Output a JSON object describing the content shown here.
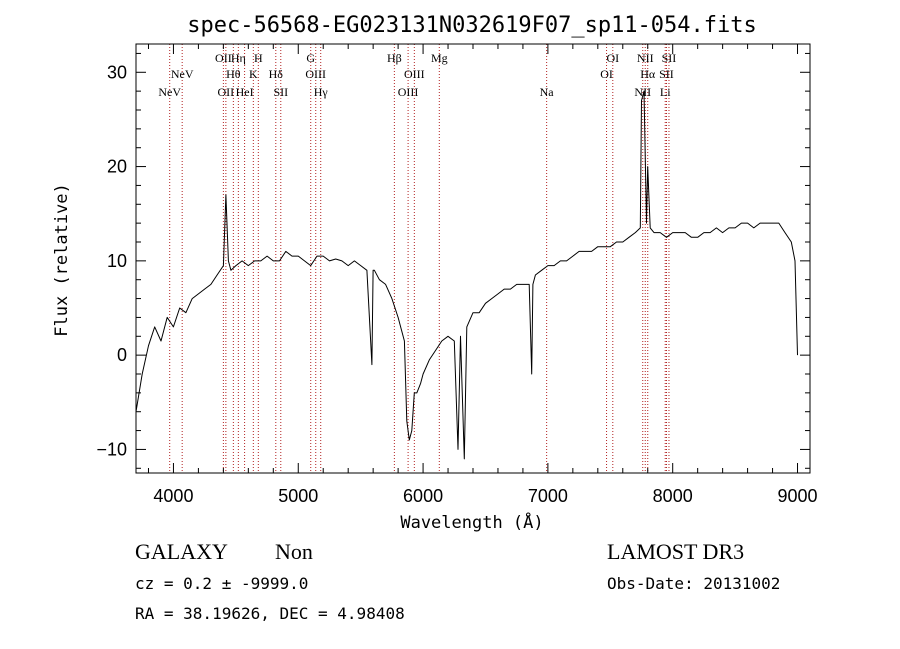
{
  "chart_data": {
    "type": "line",
    "title": "spec-56568-EG023131N032619F07_sp11-054.fits",
    "xlabel": "Wavelength (Å)",
    "ylabel": "Flux (relative)",
    "xlim": [
      3700,
      9100
    ],
    "ylim": [
      -12.5,
      33
    ],
    "xticks": [
      4000,
      5000,
      6000,
      7000,
      8000,
      9000
    ],
    "yticks": [
      -10,
      0,
      10,
      20,
      30
    ],
    "series": [
      {
        "name": "flux",
        "x": [
          3700,
          3750,
          3800,
          3850,
          3900,
          3950,
          4000,
          4050,
          4100,
          4150,
          4200,
          4250,
          4300,
          4350,
          4400,
          4420,
          4440,
          4460,
          4500,
          4550,
          4600,
          4650,
          4700,
          4750,
          4800,
          4850,
          4900,
          4950,
          5000,
          5050,
          5100,
          5150,
          5200,
          5250,
          5300,
          5350,
          5400,
          5450,
          5500,
          5550,
          5590,
          5600,
          5610,
          5650,
          5700,
          5750,
          5800,
          5850,
          5870,
          5890,
          5910,
          5930,
          5950,
          5980,
          6000,
          6050,
          6100,
          6150,
          6200,
          6250,
          6280,
          6300,
          6330,
          6350,
          6400,
          6450,
          6500,
          6550,
          6600,
          6650,
          6700,
          6750,
          6800,
          6850,
          6870,
          6880,
          6900,
          6950,
          7000,
          7050,
          7100,
          7150,
          7200,
          7250,
          7300,
          7350,
          7400,
          7450,
          7500,
          7550,
          7600,
          7650,
          7700,
          7740,
          7750,
          7770,
          7790,
          7800,
          7820,
          7850,
          7900,
          7950,
          8000,
          8050,
          8100,
          8150,
          8200,
          8250,
          8300,
          8350,
          8400,
          8450,
          8500,
          8550,
          8600,
          8650,
          8700,
          8750,
          8800,
          8850,
          8900,
          8950,
          8980,
          9000
        ],
        "y": [
          -6,
          -2,
          1,
          3,
          1.5,
          4,
          3,
          5,
          4.5,
          6,
          6.5,
          7,
          7.5,
          8.5,
          9.5,
          17,
          10,
          9,
          9.5,
          10,
          9.5,
          10,
          10,
          10.5,
          10,
          10,
          11,
          10.5,
          10.5,
          10,
          9.5,
          10.5,
          10.5,
          10,
          10.2,
          10,
          9.5,
          10,
          9.5,
          9,
          -1,
          9,
          9,
          8,
          7.5,
          6,
          4,
          1.5,
          -7,
          -9,
          -8,
          -4,
          -4,
          -3,
          -2,
          -0.5,
          0.5,
          1.5,
          2,
          1.5,
          -10,
          2,
          -11,
          3,
          4.5,
          4.5,
          5.5,
          6,
          6.5,
          7,
          7,
          7.5,
          7.5,
          7.5,
          -2,
          7.5,
          8.5,
          9,
          9.5,
          9.5,
          10,
          10,
          10.5,
          11,
          11,
          11,
          11.5,
          11.5,
          11.5,
          12,
          12,
          12.5,
          13,
          13.5,
          27,
          28,
          14,
          20,
          13.5,
          13,
          13,
          12.5,
          13,
          13,
          13,
          12.5,
          12.5,
          13,
          13,
          13.5,
          13,
          13.5,
          13.5,
          14,
          14,
          13.5,
          14,
          14,
          14,
          14,
          13,
          12,
          10,
          0
        ]
      }
    ],
    "lines": [
      {
        "wave": 3970,
        "row": 3,
        "label": "NeV"
      },
      {
        "wave": 4070,
        "row": 2,
        "label": "NeV"
      },
      {
        "wave": 4400,
        "row": 1,
        "label": "OII"
      },
      {
        "wave": 4420,
        "row": 3,
        "label": "OII"
      },
      {
        "wave": 4480,
        "row": 2,
        "label": "Hθ"
      },
      {
        "wave": 4520,
        "row": 1,
        "label": "Hη"
      },
      {
        "wave": 4570,
        "row": 3,
        "label": "HeI"
      },
      {
        "wave": 4640,
        "row": 2,
        "label": "K"
      },
      {
        "wave": 4680,
        "row": 1,
        "label": "H"
      },
      {
        "wave": 4820,
        "row": 2,
        "label": "Hδ"
      },
      {
        "wave": 4860,
        "row": 3,
        "label": "SII"
      },
      {
        "wave": 5100,
        "row": 1,
        "label": "G"
      },
      {
        "wave": 5140,
        "row": 2,
        "label": "OIII"
      },
      {
        "wave": 5180,
        "row": 3,
        "label": "Hγ"
      },
      {
        "wave": 5770,
        "row": 1,
        "label": "Hβ"
      },
      {
        "wave": 5880,
        "row": 3,
        "label": "OIII"
      },
      {
        "wave": 5930,
        "row": 2,
        "label": "OIII"
      },
      {
        "wave": 6130,
        "row": 1,
        "label": "Mg"
      },
      {
        "wave": 6990,
        "row": 3,
        "label": "Na"
      },
      {
        "wave": 7470,
        "row": 2,
        "label": "OI"
      },
      {
        "wave": 7520,
        "row": 1,
        "label": "OI"
      },
      {
        "wave": 7760,
        "row": 3,
        "label": "NII"
      },
      {
        "wave": 7780,
        "row": 1,
        "label": "NII"
      },
      {
        "wave": 7800,
        "row": 2,
        "label": "Hα"
      },
      {
        "wave": 7940,
        "row": 3,
        "label": "Li"
      },
      {
        "wave": 7950,
        "row": 2,
        "label": "SII"
      },
      {
        "wave": 7970,
        "row": 1,
        "label": "SII"
      }
    ],
    "line_color": "#b22222"
  },
  "info": {
    "class": "GALAXY",
    "subclass": "Non",
    "survey": "LAMOST DR3",
    "cz": "cz = 0.2 ± -9999.0",
    "obs_date": "Obs-Date: 20131002",
    "radec": "RA =  38.19626, DEC =   4.98408"
  }
}
